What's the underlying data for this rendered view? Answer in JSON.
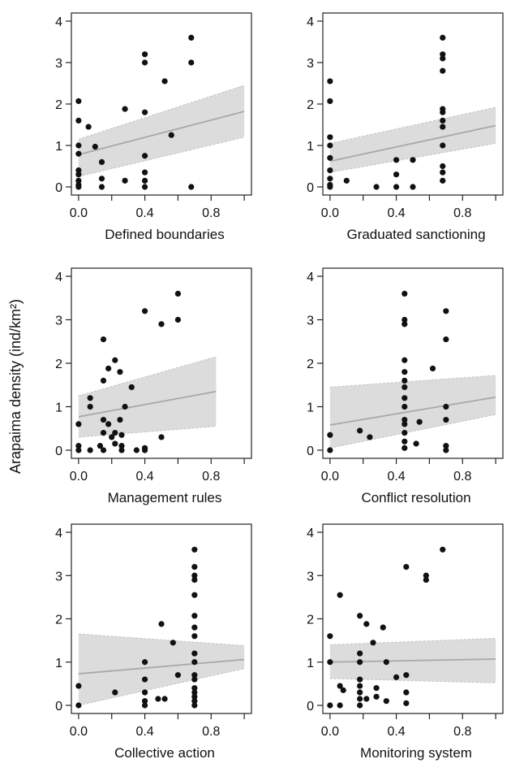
{
  "shared_ylabel": "Arapaima density (ind/km²)",
  "style": {
    "point_color": "#111111",
    "band_color": "#dcdcdc",
    "line_color": "#a8a8a8"
  },
  "chart_data": [
    {
      "type": "scatter",
      "xlabel": "Defined boundaries",
      "xlim": [
        0,
        1
      ],
      "ylim": [
        0,
        4
      ],
      "xticks": [
        "0.0",
        "0.4",
        "0.8"
      ],
      "yticks": [
        "0",
        "1",
        "2",
        "3",
        "4"
      ],
      "points": [
        [
          0,
          2.07
        ],
        [
          0,
          1.6
        ],
        [
          0,
          1.0
        ],
        [
          0,
          0.8
        ],
        [
          0,
          0.4
        ],
        [
          0,
          0.3
        ],
        [
          0,
          0.15
        ],
        [
          0,
          0.05
        ],
        [
          0,
          0
        ],
        [
          0.06,
          1.45
        ],
        [
          0.1,
          0.97
        ],
        [
          0.14,
          0.6
        ],
        [
          0.14,
          0.2
        ],
        [
          0.14,
          0
        ],
        [
          0.28,
          1.88
        ],
        [
          0.28,
          0.15
        ],
        [
          0.4,
          3.2
        ],
        [
          0.4,
          3.0
        ],
        [
          0.4,
          1.8
        ],
        [
          0.4,
          0.75
        ],
        [
          0.4,
          0.35
        ],
        [
          0.4,
          0.15
        ],
        [
          0.4,
          0
        ],
        [
          0.52,
          2.55
        ],
        [
          0.56,
          1.25
        ],
        [
          0.68,
          3.6
        ],
        [
          0.68,
          3.0
        ],
        [
          0.68,
          0
        ]
      ],
      "fit": {
        "x": [
          0,
          1
        ],
        "y": [
          0.78,
          1.82
        ],
        "lower": [
          0.25,
          1.2
        ],
        "upper": [
          1.15,
          2.45
        ]
      }
    },
    {
      "type": "scatter",
      "xlabel": "Graduated sanctioning",
      "xlim": [
        0,
        1
      ],
      "ylim": [
        0,
        4
      ],
      "xticks": [
        "0.0",
        "0.4",
        "0.8"
      ],
      "yticks": [
        "0",
        "1",
        "2",
        "3",
        "4"
      ],
      "points": [
        [
          0,
          2.55
        ],
        [
          0,
          2.07
        ],
        [
          0,
          1.2
        ],
        [
          0,
          1.0
        ],
        [
          0,
          0.7
        ],
        [
          0,
          0.4
        ],
        [
          0,
          0.2
        ],
        [
          0,
          0.05
        ],
        [
          0,
          0
        ],
        [
          0.1,
          0.15
        ],
        [
          0.28,
          0
        ],
        [
          0.4,
          0.65
        ],
        [
          0.4,
          0.3
        ],
        [
          0.4,
          0
        ],
        [
          0.5,
          0.65
        ],
        [
          0.5,
          0
        ],
        [
          0.68,
          3.6
        ],
        [
          0.68,
          3.2
        ],
        [
          0.68,
          3.1
        ],
        [
          0.68,
          2.8
        ],
        [
          0.68,
          1.88
        ],
        [
          0.68,
          1.8
        ],
        [
          0.68,
          1.6
        ],
        [
          0.68,
          1.45
        ],
        [
          0.68,
          1.0
        ],
        [
          0.68,
          0.5
        ],
        [
          0.68,
          0.35
        ],
        [
          0.68,
          0.15
        ]
      ],
      "fit": {
        "x": [
          0,
          1
        ],
        "y": [
          0.62,
          1.48
        ],
        "lower": [
          0.35,
          1.05
        ],
        "upper": [
          1.05,
          1.92
        ]
      }
    },
    {
      "type": "scatter",
      "xlabel": "Management rules",
      "xlim": [
        0,
        1
      ],
      "ylim": [
        0,
        4
      ],
      "xticks": [
        "0.0",
        "0.4",
        "0.8"
      ],
      "yticks": [
        "0",
        "1",
        "2",
        "3",
        "4"
      ],
      "points": [
        [
          0,
          0.6
        ],
        [
          0,
          0.1
        ],
        [
          0,
          0
        ],
        [
          0.07,
          1.2
        ],
        [
          0.07,
          1.0
        ],
        [
          0.07,
          0
        ],
        [
          0.13,
          0.1
        ],
        [
          0.15,
          2.55
        ],
        [
          0.15,
          1.6
        ],
        [
          0.15,
          0.7
        ],
        [
          0.15,
          0.4
        ],
        [
          0.15,
          0
        ],
        [
          0.18,
          1.88
        ],
        [
          0.18,
          0.6
        ],
        [
          0.2,
          0.3
        ],
        [
          0.22,
          2.07
        ],
        [
          0.22,
          0.4
        ],
        [
          0.22,
          0.15
        ],
        [
          0.25,
          1.8
        ],
        [
          0.25,
          0.7
        ],
        [
          0.26,
          0.35
        ],
        [
          0.26,
          0.1
        ],
        [
          0.26,
          0
        ],
        [
          0.28,
          1.0
        ],
        [
          0.32,
          1.45
        ],
        [
          0.35,
          0
        ],
        [
          0.4,
          3.2
        ],
        [
          0.4,
          0.05
        ],
        [
          0.4,
          0
        ],
        [
          0.5,
          2.9
        ],
        [
          0.5,
          0.3
        ],
        [
          0.6,
          3.6
        ],
        [
          0.6,
          3.0
        ]
      ],
      "fit": {
        "x": [
          0,
          0.83
        ],
        "y": [
          0.77,
          1.35
        ],
        "lower": [
          0.3,
          0.55
        ],
        "upper": [
          1.25,
          2.15
        ]
      }
    },
    {
      "type": "scatter",
      "xlabel": "Conflict resolution",
      "xlim": [
        0,
        1
      ],
      "ylim": [
        0,
        4
      ],
      "xticks": [
        "0.0",
        "0.4",
        "0.8"
      ],
      "yticks": [
        "0",
        "1",
        "2",
        "3",
        "4"
      ],
      "points": [
        [
          0,
          0.35
        ],
        [
          0,
          0
        ],
        [
          0.18,
          0.45
        ],
        [
          0.24,
          0.3
        ],
        [
          0.45,
          3.6
        ],
        [
          0.45,
          3.0
        ],
        [
          0.45,
          2.9
        ],
        [
          0.45,
          2.07
        ],
        [
          0.45,
          1.8
        ],
        [
          0.45,
          1.6
        ],
        [
          0.45,
          1.45
        ],
        [
          0.45,
          1.2
        ],
        [
          0.45,
          1.0
        ],
        [
          0.45,
          0.7
        ],
        [
          0.45,
          0.6
        ],
        [
          0.45,
          0.4
        ],
        [
          0.45,
          0.2
        ],
        [
          0.45,
          0.05
        ],
        [
          0.52,
          0.15
        ],
        [
          0.54,
          0.65
        ],
        [
          0.62,
          1.88
        ],
        [
          0.7,
          3.2
        ],
        [
          0.7,
          2.55
        ],
        [
          0.7,
          1.0
        ],
        [
          0.7,
          0.7
        ],
        [
          0.7,
          0.1
        ],
        [
          0.7,
          0
        ]
      ],
      "fit": {
        "x": [
          0,
          1
        ],
        "y": [
          0.58,
          1.22
        ],
        "lower": [
          0.05,
          0.82
        ],
        "upper": [
          1.45,
          1.72
        ]
      }
    },
    {
      "type": "scatter",
      "xlabel": "Collective action",
      "xlim": [
        0,
        1
      ],
      "ylim": [
        0,
        4
      ],
      "xticks": [
        "0.0",
        "0.4",
        "0.8"
      ],
      "yticks": [
        "0",
        "1",
        "2",
        "3",
        "4"
      ],
      "points": [
        [
          0,
          0.45
        ],
        [
          0,
          0
        ],
        [
          0.22,
          0.3
        ],
        [
          0.4,
          1.0
        ],
        [
          0.4,
          0.6
        ],
        [
          0.4,
          0.3
        ],
        [
          0.4,
          0.1
        ],
        [
          0.4,
          0
        ],
        [
          0.48,
          0.15
        ],
        [
          0.5,
          1.88
        ],
        [
          0.52,
          0.15
        ],
        [
          0.57,
          1.45
        ],
        [
          0.6,
          0.7
        ],
        [
          0.7,
          3.6
        ],
        [
          0.7,
          3.2
        ],
        [
          0.7,
          3.0
        ],
        [
          0.7,
          2.9
        ],
        [
          0.7,
          2.55
        ],
        [
          0.7,
          2.07
        ],
        [
          0.7,
          1.8
        ],
        [
          0.7,
          1.6
        ],
        [
          0.7,
          1.2
        ],
        [
          0.7,
          1.0
        ],
        [
          0.7,
          0.7
        ],
        [
          0.7,
          0.6
        ],
        [
          0.7,
          0.4
        ],
        [
          0.7,
          0.3
        ],
        [
          0.7,
          0.2
        ],
        [
          0.7,
          0.1
        ],
        [
          0.7,
          0
        ]
      ],
      "fit": {
        "x": [
          0,
          1
        ],
        "y": [
          0.73,
          1.06
        ],
        "lower": [
          0,
          0.85
        ],
        "upper": [
          1.65,
          1.38
        ]
      }
    },
    {
      "type": "scatter",
      "xlabel": "Monitoring system",
      "xlim": [
        0,
        1
      ],
      "ylim": [
        0,
        4
      ],
      "xticks": [
        "0.0",
        "0.4",
        "0.8"
      ],
      "yticks": [
        "0",
        "1",
        "2",
        "3",
        "4"
      ],
      "points": [
        [
          0,
          1.6
        ],
        [
          0,
          1.0
        ],
        [
          0,
          0
        ],
        [
          0.06,
          2.55
        ],
        [
          0.06,
          0.45
        ],
        [
          0.06,
          0
        ],
        [
          0.08,
          0.35
        ],
        [
          0.18,
          2.07
        ],
        [
          0.18,
          1.2
        ],
        [
          0.18,
          1.0
        ],
        [
          0.18,
          0.6
        ],
        [
          0.18,
          0.45
        ],
        [
          0.18,
          0.3
        ],
        [
          0.18,
          0.15
        ],
        [
          0.18,
          0
        ],
        [
          0.22,
          1.88
        ],
        [
          0.22,
          0.15
        ],
        [
          0.26,
          1.45
        ],
        [
          0.28,
          0.4
        ],
        [
          0.28,
          0.2
        ],
        [
          0.32,
          1.8
        ],
        [
          0.34,
          1.0
        ],
        [
          0.34,
          0.1
        ],
        [
          0.4,
          0.65
        ],
        [
          0.46,
          3.2
        ],
        [
          0.46,
          0.7
        ],
        [
          0.46,
          0.3
        ],
        [
          0.46,
          0.05
        ],
        [
          0.58,
          3.0
        ],
        [
          0.58,
          2.9
        ],
        [
          0.68,
          3.6
        ]
      ],
      "fit": {
        "x": [
          0,
          1
        ],
        "y": [
          1.0,
          1.07
        ],
        "lower": [
          0.62,
          0.52
        ],
        "upper": [
          1.4,
          1.55
        ]
      }
    }
  ]
}
